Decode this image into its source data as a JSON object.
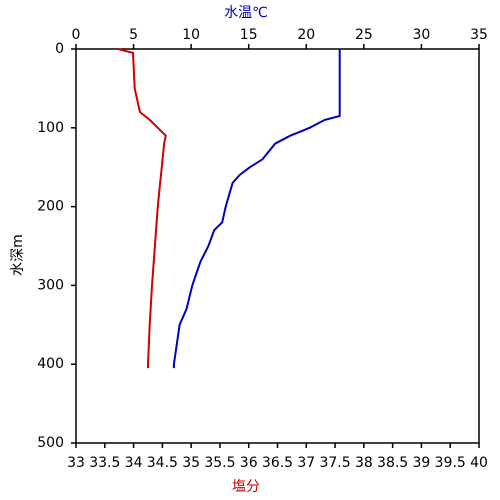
{
  "chart_data": {
    "type": "line",
    "xlabel": "塩分",
    "x2label": "水温℃",
    "ylabel": "水深m",
    "xlim": [
      33,
      40
    ],
    "xticks": [
      33,
      33.5,
      34,
      34.5,
      35,
      35.5,
      36,
      36.5,
      37,
      37.5,
      38,
      38.5,
      39,
      39.5,
      40
    ],
    "x2lim": [
      0,
      35
    ],
    "x2ticks": [
      0,
      5,
      10,
      15,
      20,
      25,
      30,
      35
    ],
    "ylim": [
      0,
      500
    ],
    "yticks": [
      0,
      100,
      200,
      300,
      400,
      500
    ],
    "y_inverted": true,
    "series": [
      {
        "name": "水温",
        "axis": "x2",
        "color": "#0000c0",
        "x": [
          22.9,
          22.9,
          22.9,
          22.9,
          21.6,
          20.3,
          18.6,
          17.3,
          16.2,
          15.1,
          14.2,
          13.6,
          13.2,
          13.0,
          12.7,
          12.0,
          11.5,
          10.8,
          10.1,
          9.6,
          9.0,
          8.7,
          8.5,
          8.5
        ],
        "y": [
          0,
          30,
          60,
          85,
          90,
          100,
          110,
          120,
          140,
          150,
          160,
          170,
          190,
          200,
          220,
          230,
          250,
          270,
          300,
          330,
          350,
          380,
          400,
          405
        ]
      },
      {
        "name": "塩分",
        "axis": "x",
        "color": "#d00000",
        "x": [
          33.73,
          33.99,
          34.02,
          34.11,
          34.28,
          34.42,
          34.56,
          34.53,
          34.49,
          34.46,
          34.42,
          34.37,
          34.32,
          34.28,
          34.25,
          34.25
        ],
        "y": [
          0,
          5,
          50,
          80,
          90,
          100,
          110,
          120,
          150,
          170,
          200,
          250,
          300,
          350,
          400,
          405
        ]
      }
    ]
  }
}
